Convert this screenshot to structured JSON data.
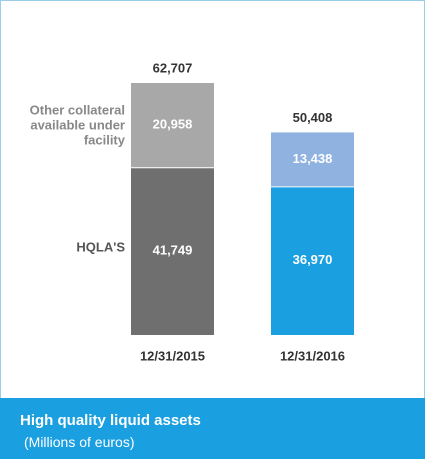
{
  "chart_data": {
    "type": "stacked-bar",
    "title": "High quality liquid assets",
    "subtitle": "(Millions of euros)",
    "categories": [
      "12/31/2015",
      "12/31/2016"
    ],
    "series": [
      {
        "name": "HQLA'S",
        "colors": [
          "#6f6f6f",
          "#1a9fe0"
        ],
        "values": [
          41749,
          36970
        ],
        "value_labels": [
          "41,749",
          "36,970"
        ]
      },
      {
        "name": "Other collateral available under facility",
        "colors": [
          "#a8a8a8",
          "#8fb2e0"
        ],
        "values": [
          20958,
          13438
        ],
        "value_labels": [
          "20,958",
          "13,438"
        ]
      }
    ],
    "totals": [
      62707,
      50408
    ],
    "total_labels": [
      "62,707",
      "50,408"
    ]
  }
}
